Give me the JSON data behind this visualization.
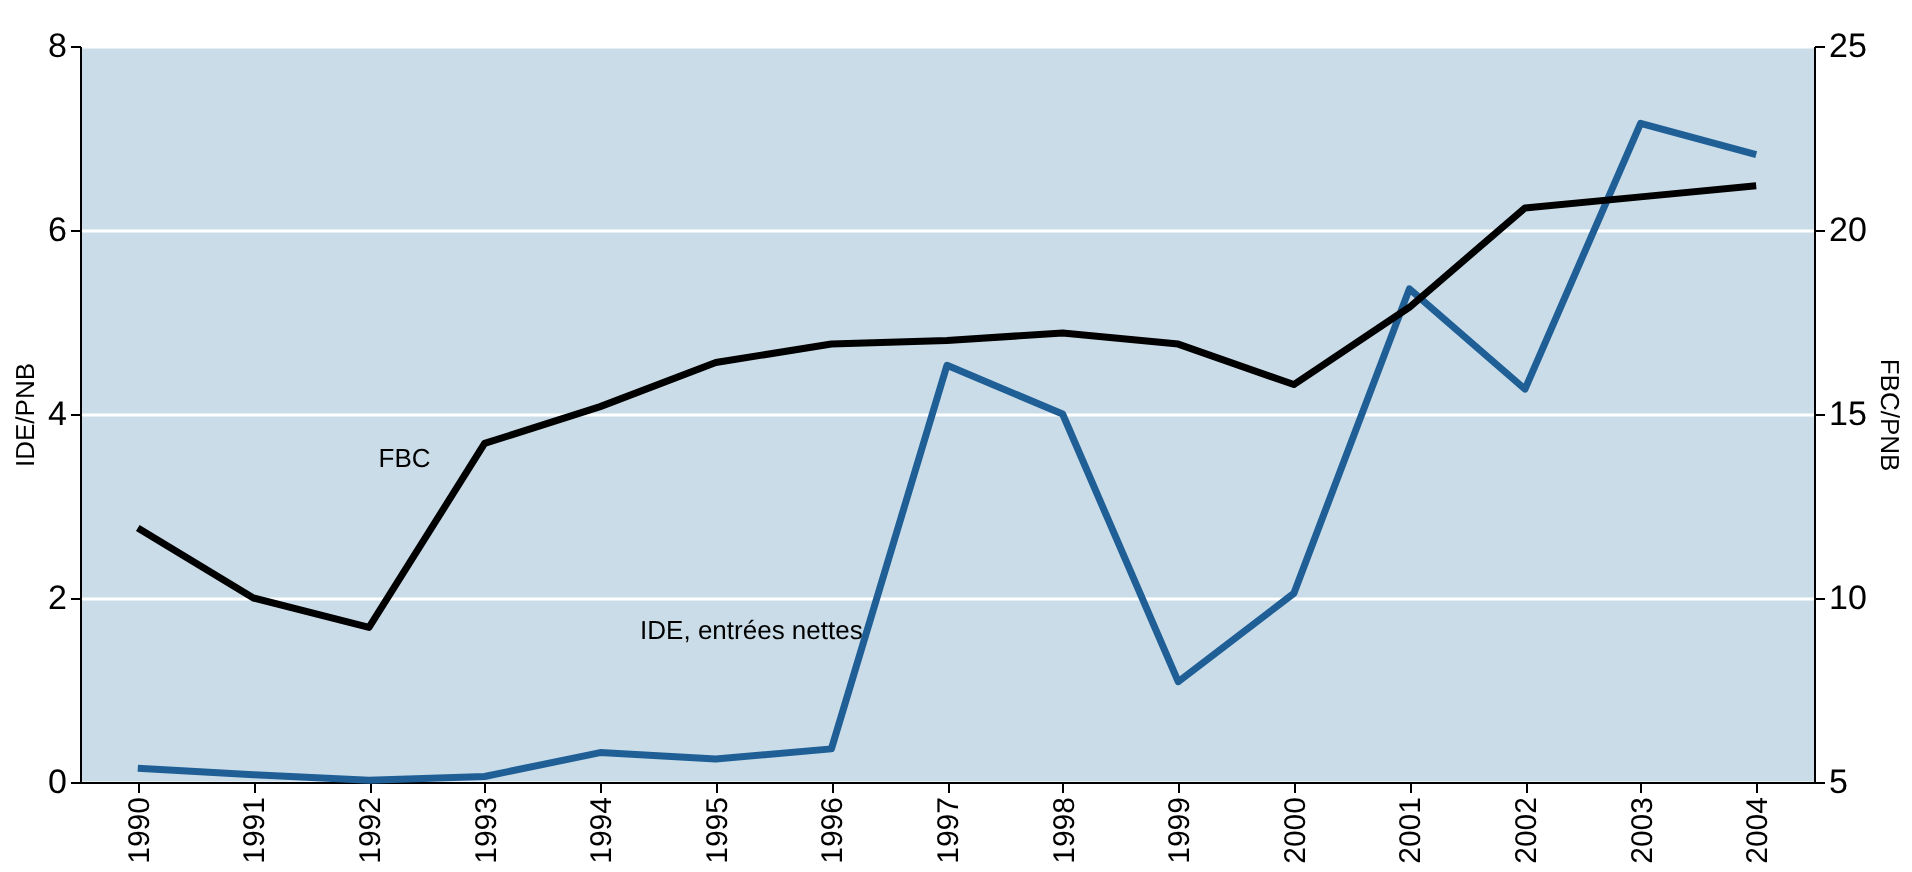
{
  "chart_data": {
    "type": "line",
    "ylabel": "IDE/PNB",
    "y2label": "FBC/PNB",
    "categories": [
      "1990",
      "1991",
      "1992",
      "1993",
      "1994",
      "1995",
      "1996",
      "1997",
      "1998",
      "1999",
      "2000",
      "2001",
      "2002",
      "2003",
      "2004"
    ],
    "series": [
      {
        "name": "IDE, entrées nettes",
        "color": "#1f5f96",
        "values": [
          0.15,
          0.08,
          0.02,
          0.06,
          0.32,
          0.25,
          0.36,
          4.53,
          4.0,
          1.09,
          2.05,
          5.36,
          4.27,
          7.16,
          6.82
        ]
      },
      {
        "name": "FBC",
        "color": "#000000",
        "axis": "y2",
        "values": [
          11.9,
          10.0,
          9.2,
          14.2,
          15.2,
          16.4,
          16.9,
          17.0,
          17.2,
          16.9,
          15.8,
          17.9,
          20.6,
          20.9,
          21.2
        ]
      }
    ],
    "ylim": [
      0,
      8
    ],
    "yticks": [
      0,
      2,
      4,
      6,
      8
    ],
    "y2lim": [
      5,
      25
    ],
    "y2ticks": [
      5,
      10,
      15,
      20,
      25
    ],
    "grid": "y",
    "marker": "none",
    "line_style": "solid"
  }
}
